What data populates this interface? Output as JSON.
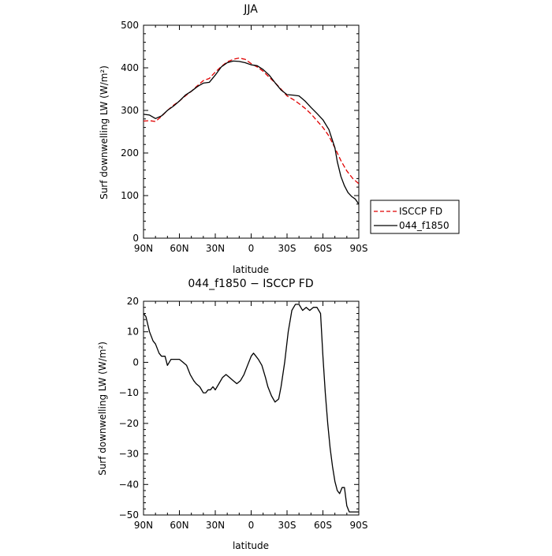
{
  "chart_data": [
    {
      "type": "line",
      "title": "JJA",
      "xlabel": "latitude",
      "ylabel": "Surf downwelling LW (W/m²)",
      "xlim": [
        -90,
        90
      ],
      "ylim": [
        0,
        500
      ],
      "x_ticks": [
        -90,
        -60,
        -30,
        0,
        30,
        60,
        90
      ],
      "x_tick_labels": [
        "90N",
        "60N",
        "30N",
        "0",
        "30S",
        "60S",
        "90S"
      ],
      "y_ticks": [
        0,
        100,
        200,
        300,
        400,
        500
      ],
      "y_tick_labels": [
        "0",
        "100",
        "200",
        "300",
        "400",
        "500"
      ],
      "legend_position": "right",
      "series": [
        {
          "name": "ISCCP FD",
          "color": "#e00000",
          "dash": "dashed",
          "x": [
            -90,
            -85,
            -80,
            -75,
            -70,
            -65,
            -60,
            -55,
            -50,
            -45,
            -40,
            -35,
            -30,
            -25,
            -20,
            -15,
            -10,
            -5,
            0,
            5,
            10,
            15,
            20,
            25,
            30,
            35,
            40,
            45,
            50,
            55,
            60,
            65,
            70,
            75,
            80,
            85,
            90
          ],
          "y": [
            275,
            276,
            274,
            286,
            300,
            312,
            322,
            334,
            345,
            358,
            370,
            375,
            390,
            403,
            414,
            420,
            423,
            420,
            410,
            402,
            392,
            378,
            365,
            350,
            334,
            326,
            316,
            305,
            292,
            276,
            260,
            240,
            212,
            182,
            158,
            140,
            128
          ]
        },
        {
          "name": "044_f1850",
          "color": "#000000",
          "dash": "solid",
          "x": [
            -90,
            -85,
            -80,
            -75,
            -70,
            -65,
            -60,
            -55,
            -50,
            -45,
            -40,
            -35,
            -30,
            -25,
            -20,
            -15,
            -10,
            -5,
            0,
            5,
            10,
            15,
            20,
            25,
            30,
            35,
            40,
            45,
            50,
            55,
            60,
            65,
            70,
            72,
            75,
            78,
            81,
            84,
            87,
            90
          ],
          "y": [
            291,
            289,
            281,
            287,
            300,
            310,
            322,
            336,
            345,
            356,
            364,
            366,
            383,
            402,
            412,
            416,
            415,
            412,
            407,
            405,
            396,
            383,
            365,
            348,
            337,
            336,
            334,
            322,
            307,
            293,
            278,
            255,
            212,
            180,
            145,
            123,
            107,
            98,
            92,
            80
          ]
        }
      ]
    },
    {
      "type": "line",
      "title": "044_f1850 − ISCCP FD",
      "xlabel": "latitude",
      "ylabel": "Surf downwelling LW (W/m²)",
      "xlim": [
        -90,
        90
      ],
      "ylim": [
        -50,
        20
      ],
      "x_ticks": [
        -90,
        -60,
        -30,
        0,
        30,
        60,
        90
      ],
      "x_tick_labels": [
        "90N",
        "60N",
        "30N",
        "0",
        "30S",
        "60S",
        "90S"
      ],
      "y_ticks": [
        -50,
        -40,
        -30,
        -20,
        -10,
        0,
        10,
        20
      ],
      "y_tick_labels": [
        "−50",
        "−40",
        "−30",
        "−20",
        "−10",
        "0",
        "10",
        "20"
      ],
      "series": [
        {
          "color": "#000000",
          "dash": "solid",
          "x": [
            -90,
            -88,
            -85,
            -82,
            -80,
            -77,
            -75,
            -72,
            -70,
            -67,
            -64,
            -62,
            -60,
            -57,
            -54,
            -51,
            -48,
            -46,
            -43,
            -40,
            -38,
            -36,
            -34,
            -32,
            -30,
            -27,
            -24,
            -21,
            -18,
            -15,
            -12,
            -9,
            -6,
            -3,
            0,
            2,
            4,
            6,
            9,
            12,
            14,
            17,
            20,
            23,
            25,
            28,
            31,
            34,
            37,
            40,
            43,
            46,
            49,
            52,
            55,
            58,
            60,
            62,
            64,
            66,
            68,
            70,
            72,
            74,
            76,
            78,
            80,
            82,
            84,
            86,
            88,
            90
          ],
          "y": [
            16,
            15,
            10,
            7,
            6,
            3,
            2,
            2,
            -1,
            1,
            1,
            1,
            1,
            0,
            -1,
            -4,
            -6,
            -7,
            -8,
            -10,
            -10,
            -9,
            -9,
            -8,
            -9,
            -7,
            -5,
            -4,
            -5,
            -6,
            -7,
            -6,
            -4,
            -1,
            2,
            3,
            2,
            1,
            -1,
            -5,
            -8,
            -11,
            -13,
            -12,
            -8,
            0,
            10,
            17,
            19,
            19,
            17,
            18,
            17,
            18,
            18,
            16,
            2,
            -10,
            -20,
            -28,
            -34,
            -39,
            -42,
            -43,
            -41,
            -41,
            -47,
            -49,
            -49,
            -49,
            -49,
            -49
          ]
        }
      ]
    }
  ]
}
